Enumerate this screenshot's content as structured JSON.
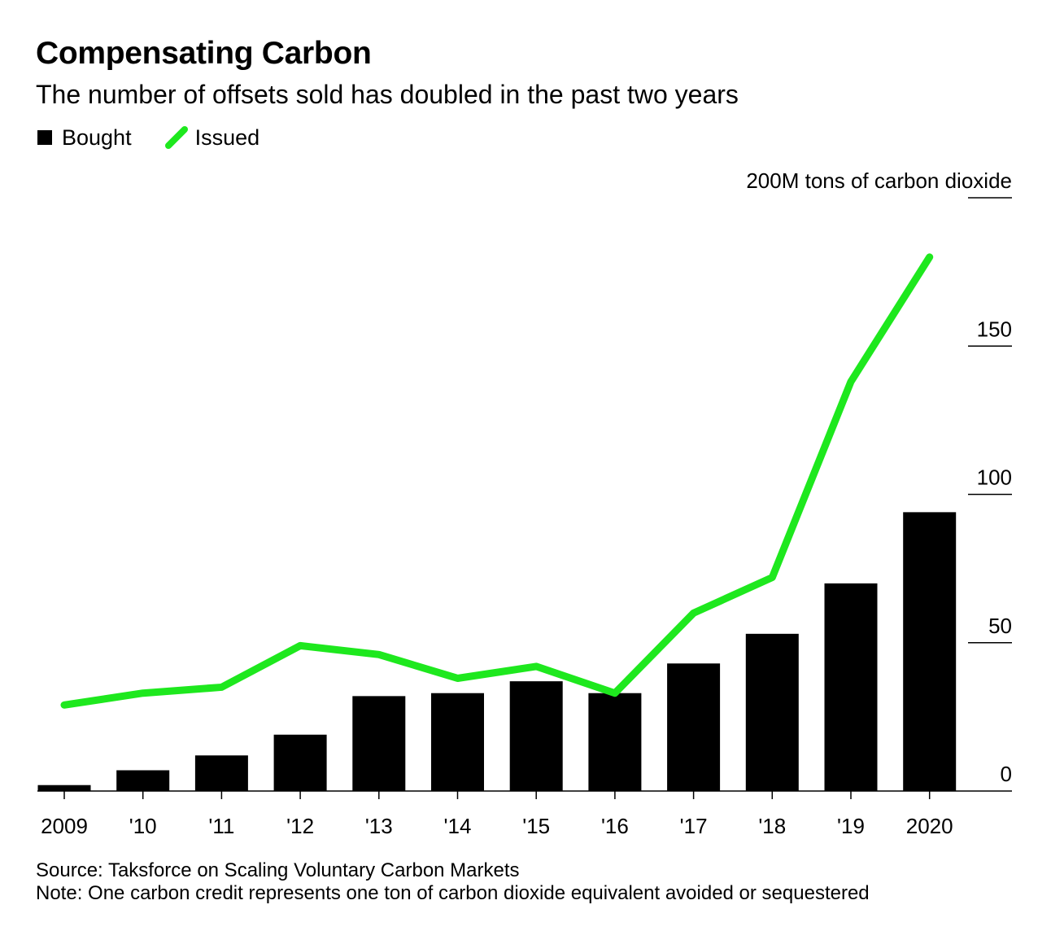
{
  "header": {
    "title": "Compensating Carbon",
    "subtitle": "The number of offsets sold has doubled in the past two years"
  },
  "legend": {
    "items": [
      {
        "label": "Bought",
        "color": "#000000"
      },
      {
        "label": "Issued",
        "color": "#1ee81e"
      }
    ]
  },
  "chart_data": {
    "type": "bar",
    "categories": [
      "2009",
      "'10",
      "'11",
      "'12",
      "'13",
      "'14",
      "'15",
      "'16",
      "'17",
      "'18",
      "'19",
      "2020"
    ],
    "series": [
      {
        "name": "Bought",
        "type": "bar",
        "color": "#000000",
        "values": [
          2,
          7,
          12,
          19,
          32,
          33,
          37,
          33,
          43,
          53,
          70,
          94
        ]
      },
      {
        "name": "Issued",
        "type": "line",
        "color": "#1ee81e",
        "values": [
          29,
          33,
          35,
          49,
          46,
          38,
          42,
          33,
          60,
          72,
          138,
          180
        ]
      }
    ],
    "y_axis": {
      "ticks": [
        0,
        50,
        100,
        150,
        200
      ],
      "tick_labels": [
        "0",
        "50",
        "100",
        "150",
        "200M tons of carbon dioxide"
      ],
      "position": "right",
      "ylim": [
        0,
        200
      ]
    },
    "grid": false,
    "legend_position": "top-left"
  },
  "footer": {
    "source": "Source: Taksforce on Scaling Voluntary Carbon Markets",
    "note": "Note: One carbon credit represents one ton of carbon dioxide equivalent avoided or sequestered"
  }
}
